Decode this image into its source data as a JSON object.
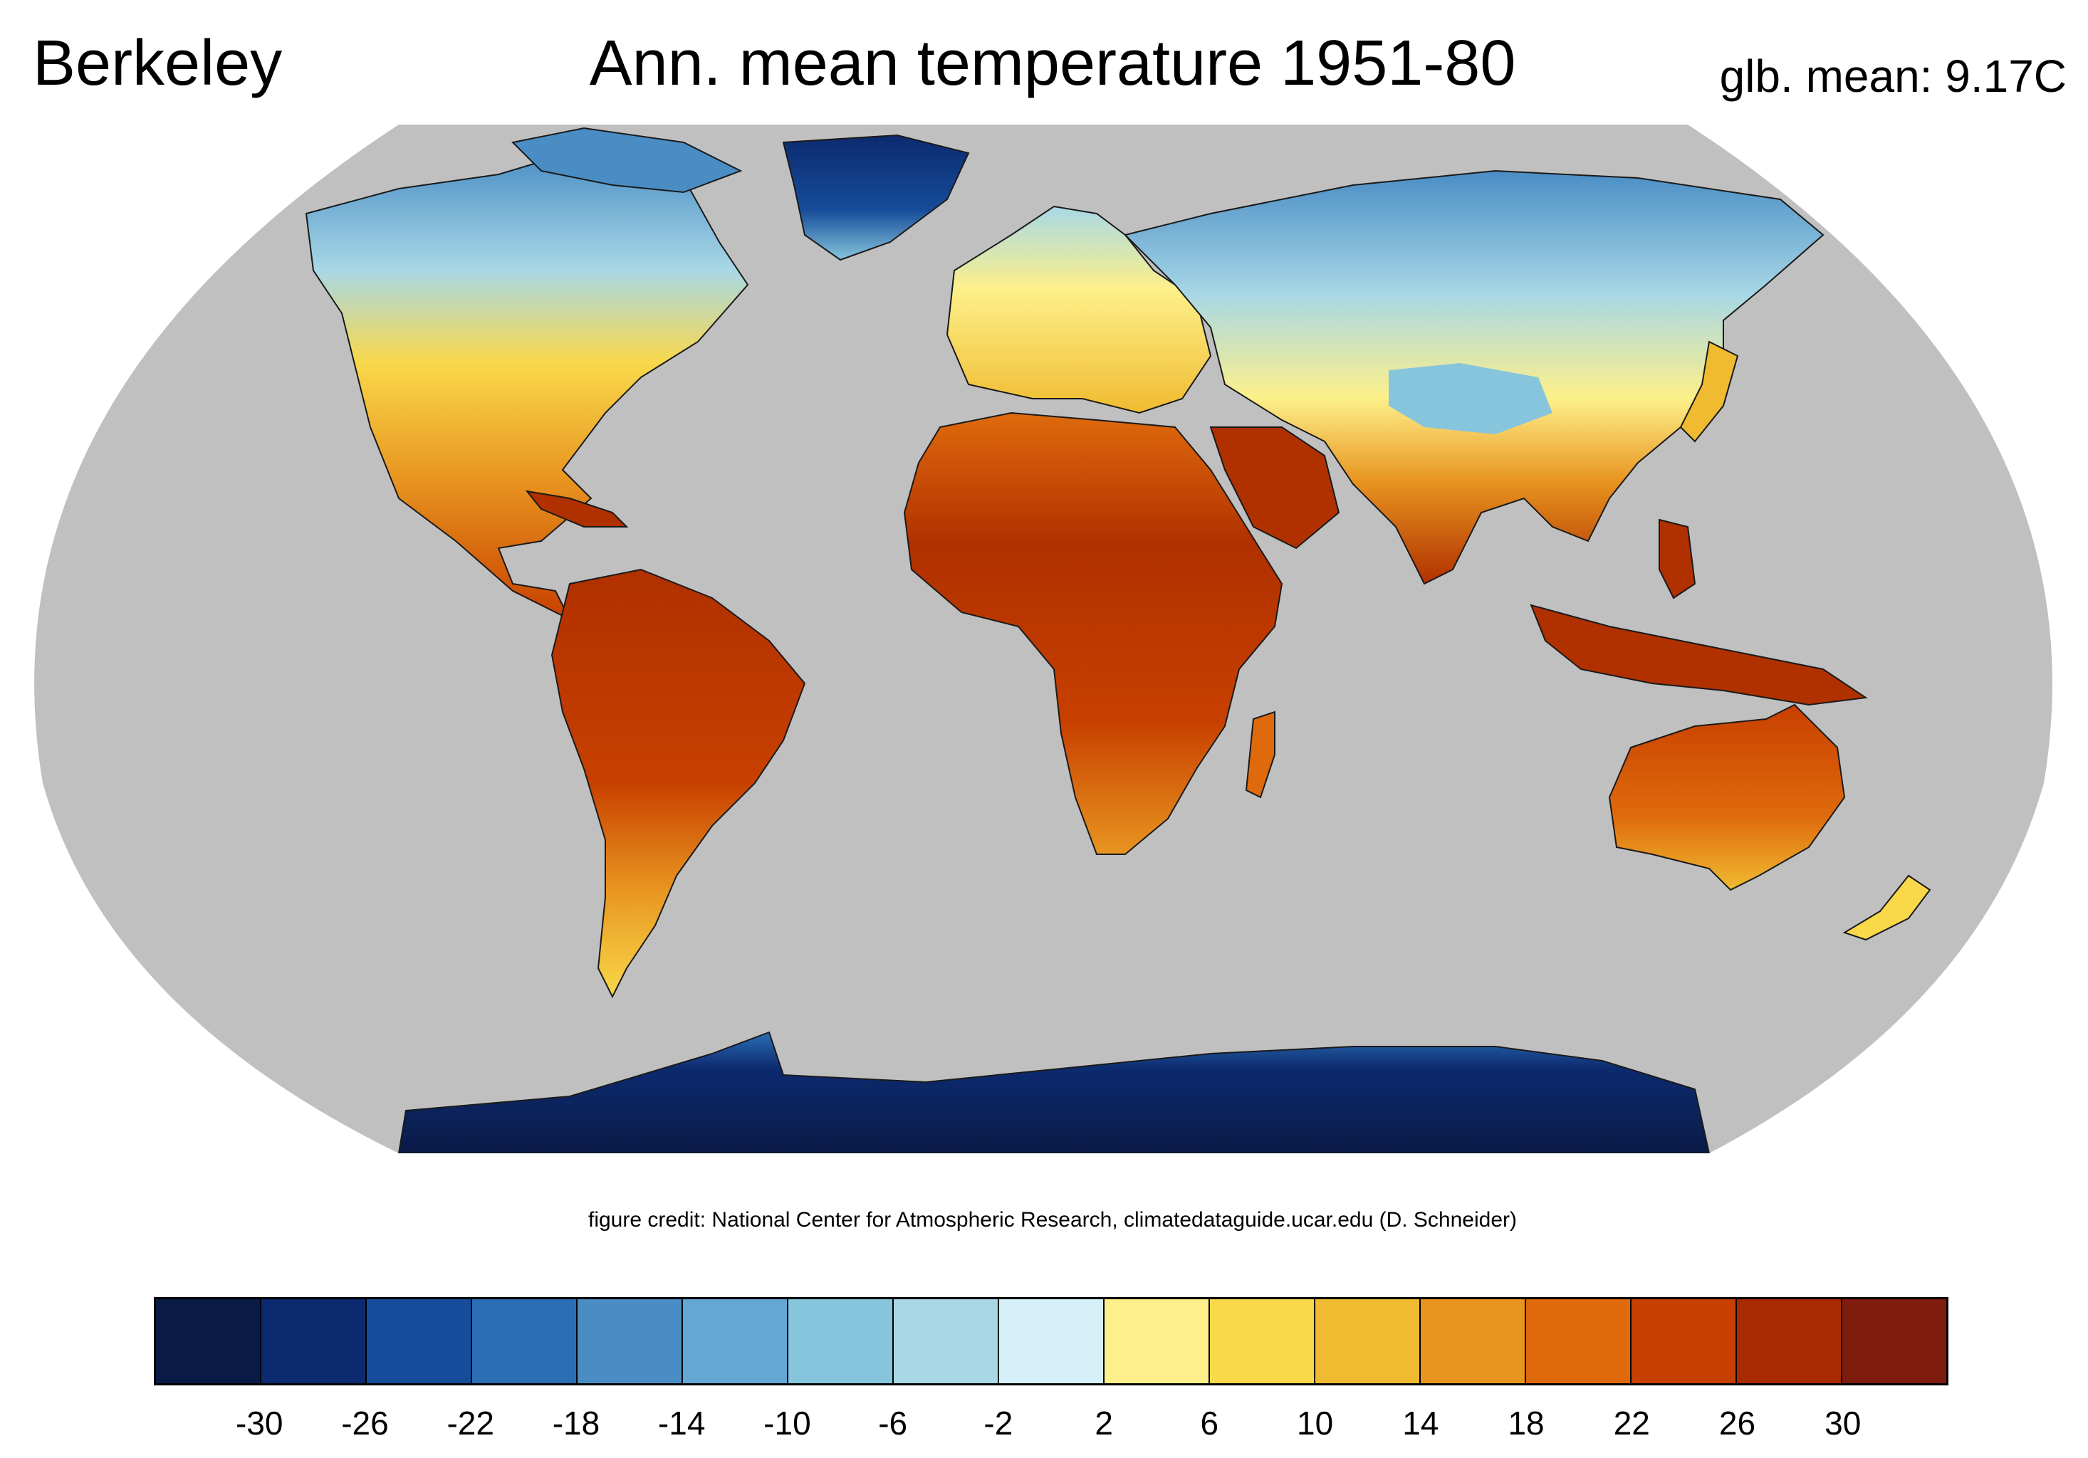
{
  "header": {
    "left": "Berkeley",
    "center": "Ann. mean temperature 1951-80",
    "right": "glb. mean: 9.17C"
  },
  "credit": "figure credit: National Center for Atmospheric Research, climatedataguide.ucar.edu (D. Schneider)",
  "map": {
    "projection": "Robinson",
    "ocean_color": "#c0c0c0",
    "coastline_color": "#000000",
    "regions": [
      {
        "id": "north-america",
        "zone": "temperate-to-cold"
      },
      {
        "id": "greenland",
        "zone": "ice"
      },
      {
        "id": "south-america",
        "zone": "tropical"
      },
      {
        "id": "europe",
        "zone": "temperate"
      },
      {
        "id": "africa",
        "zone": "tropical"
      },
      {
        "id": "asia",
        "zone": "temperate-to-cold"
      },
      {
        "id": "maritime-southeast-asia",
        "zone": "tropical"
      },
      {
        "id": "australia",
        "zone": "tropical"
      },
      {
        "id": "new-zealand",
        "zone": "temperate"
      },
      {
        "id": "antarctica",
        "zone": "ice"
      }
    ]
  },
  "colorbar": {
    "colors": [
      "#0a1a46",
      "#0c2a6f",
      "#164c9a",
      "#2b6eb5",
      "#4a8dc5",
      "#63a8d4",
      "#87c5dc",
      "#a8d8e6",
      "#d5f0f8",
      "#fdf08a",
      "#f9d84a",
      "#f0bb30",
      "#e89520",
      "#df6a0c",
      "#c84000",
      "#a82a00",
      "#7e1c0e"
    ],
    "ticks": [
      "-30",
      "-26",
      "-22",
      "-18",
      "-14",
      "-10",
      "-6",
      "-2",
      "2",
      "6",
      "10",
      "14",
      "18",
      "22",
      "26",
      "30"
    ]
  }
}
